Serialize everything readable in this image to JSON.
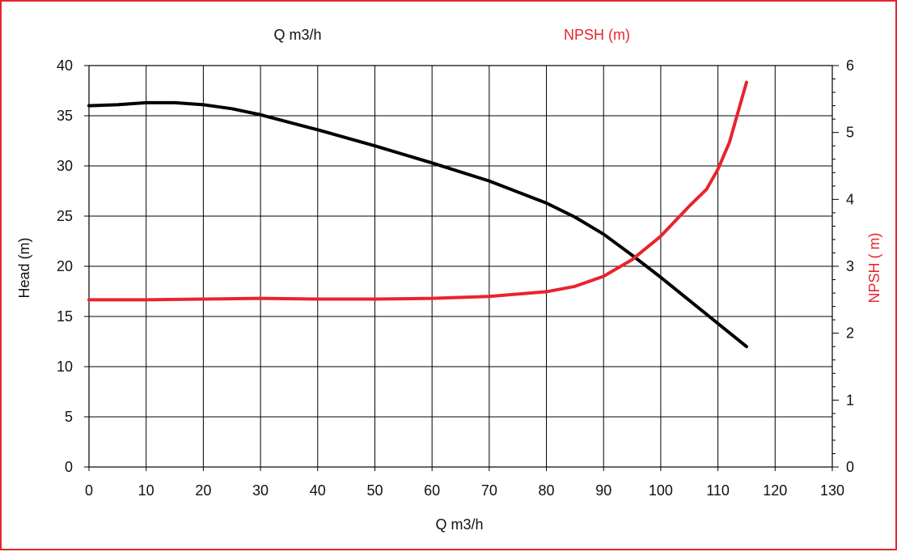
{
  "chart_data": {
    "type": "line",
    "title": "",
    "top_labels": {
      "left": "Q m3/h",
      "right": "NPSH (m)"
    },
    "xlabel": "Q m3/h",
    "ylabel": "Head (m)",
    "y2label": "NPSH ( m)",
    "xlim": [
      0,
      130
    ],
    "ylim": [
      0,
      40
    ],
    "y2lim": [
      0,
      6
    ],
    "x_ticks": [
      "0",
      "10",
      "20",
      "30",
      "40",
      "50",
      "60",
      "70",
      "80",
      "90",
      "100",
      "110",
      "120",
      "130"
    ],
    "y_ticks": [
      "0",
      "5",
      "10",
      "15",
      "20",
      "25",
      "30",
      "35",
      "40"
    ],
    "y2_ticks": [
      "0",
      "1",
      "2",
      "3",
      "4",
      "5",
      "6"
    ],
    "grid": true,
    "series": [
      {
        "name": "Head (m)",
        "axis": "left",
        "color": "#000000",
        "x": [
          0,
          5,
          10,
          15,
          20,
          25,
          30,
          40,
          50,
          60,
          70,
          80,
          85,
          90,
          95,
          100,
          105,
          110,
          115
        ],
        "y": [
          36.0,
          36.1,
          36.3,
          36.3,
          36.1,
          35.7,
          35.1,
          33.6,
          32.0,
          30.3,
          28.5,
          26.3,
          24.9,
          23.2,
          21.1,
          18.9,
          16.6,
          14.3,
          12.0
        ]
      },
      {
        "name": "NPSH (m)",
        "axis": "right",
        "color": "#e8242d",
        "x": [
          0,
          10,
          20,
          30,
          40,
          50,
          60,
          70,
          80,
          85,
          90,
          95,
          100,
          105,
          108,
          110,
          112,
          114,
          115
        ],
        "y": [
          2.5,
          2.5,
          2.51,
          2.52,
          2.51,
          2.51,
          2.52,
          2.55,
          2.62,
          2.7,
          2.85,
          3.1,
          3.45,
          3.9,
          4.15,
          4.45,
          4.85,
          5.45,
          5.75
        ]
      }
    ]
  }
}
